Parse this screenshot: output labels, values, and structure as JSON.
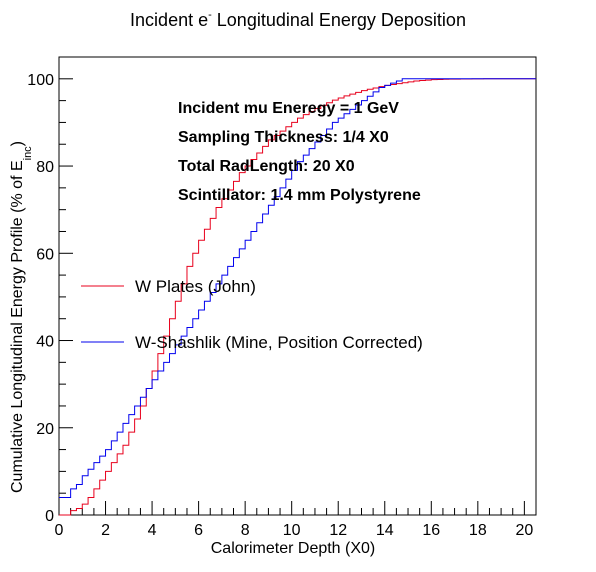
{
  "chart_data": {
    "type": "line",
    "title": "Incident e",
    "title_sup": "-",
    "title_rest": " Longitudinal Energy Deposition",
    "xlabel": "Calorimeter Depth (X0)",
    "ylabel": "Cumulative Longitudinal Energy Profile (% of E",
    "ylabel_sub": "inc",
    "ylabel_close": ")",
    "xlim": [
      0,
      20.5
    ],
    "ylim": [
      0,
      105
    ],
    "x_ticks": [
      0,
      2,
      4,
      6,
      8,
      10,
      12,
      14,
      16,
      18,
      20
    ],
    "y_ticks": [
      0,
      20,
      40,
      60,
      80,
      100
    ],
    "grid": false,
    "legend_placement": "middle-left",
    "annotations": [
      "Incident mu Eneregy = 1 GeV",
      "Sampling Thickness: 1/4 X0",
      "Total RadLength: 20 X0",
      "Scintillator: 1.4 mm Polystyrene"
    ],
    "bin_width": 0.25,
    "series": [
      {
        "name": "W Plates (John)",
        "color": "#e8001c",
        "values": [
          0,
          0,
          1,
          1.5,
          2.5,
          4,
          6,
          8,
          10,
          12,
          14,
          16,
          19,
          22,
          25,
          29,
          33,
          37,
          41,
          45,
          49,
          53,
          57,
          60,
          63,
          65.5,
          68,
          70.5,
          72.5,
          74.5,
          76.5,
          78.5,
          80,
          81.5,
          83,
          84.5,
          86,
          87,
          88,
          89,
          90,
          91,
          91.8,
          92.5,
          93.2,
          93.9,
          94.5,
          95.1,
          95.6,
          96.1,
          96.5,
          96.9,
          97.3,
          97.6,
          97.9,
          98.2,
          98.5,
          98.7,
          98.9,
          99.1,
          99.3,
          99.5,
          99.6,
          99.7,
          99.8,
          99.85,
          99.9,
          99.92,
          99.94,
          99.96,
          99.97,
          99.98,
          99.99,
          100,
          100,
          100,
          100,
          100,
          100,
          100,
          100,
          100
        ]
      },
      {
        "name": "W-Shashlik (Mine, Position Corrected)",
        "color": "#0000ee",
        "values": [
          4,
          4,
          6,
          7,
          9,
          10.5,
          12,
          13.5,
          15,
          17,
          19,
          21,
          23,
          25,
          27,
          29,
          31,
          33,
          35,
          37,
          39,
          41,
          43,
          45,
          47,
          49,
          51,
          53,
          55,
          57,
          59,
          61,
          63,
          65,
          67,
          69,
          71,
          73,
          75,
          77,
          79,
          81,
          82.5,
          84,
          85.5,
          87,
          88.5,
          90,
          91,
          92,
          93,
          94,
          95,
          96,
          97,
          98,
          98.5,
          99,
          99.5,
          100,
          100,
          100,
          100,
          100,
          100,
          100,
          100,
          100,
          100,
          100,
          100,
          100,
          100,
          100,
          100,
          100,
          100,
          100,
          100,
          100,
          100,
          100
        ]
      }
    ]
  }
}
